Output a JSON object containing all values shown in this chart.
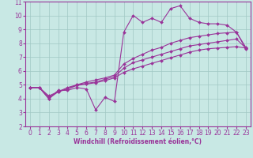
{
  "title": "",
  "xlabel": "Windchill (Refroidissement éolien,°C)",
  "ylabel": "",
  "bg_color": "#c8e8e4",
  "grid_color": "#a0c8c4",
  "line_color": "#993399",
  "axis_color": "#993399",
  "marker": "D",
  "markersize": 2.0,
  "linewidth": 0.8,
  "xlim": [
    -0.5,
    23.5
  ],
  "ylim": [
    2,
    11
  ],
  "xticks": [
    0,
    1,
    2,
    3,
    4,
    5,
    6,
    7,
    8,
    9,
    10,
    11,
    12,
    13,
    14,
    15,
    16,
    17,
    18,
    19,
    20,
    21,
    22,
    23
  ],
  "yticks": [
    2,
    3,
    4,
    5,
    6,
    7,
    8,
    9,
    10,
    11
  ],
  "xlabel_fontsize": 5.5,
  "tick_fontsize": 5.5,
  "series": [
    {
      "x": [
        0,
        1,
        2,
        3,
        4,
        5,
        6,
        7,
        8,
        9,
        10,
        11,
        12,
        13,
        14,
        15,
        16,
        17,
        18,
        19,
        20,
        21,
        22,
        23
      ],
      "y": [
        4.8,
        4.8,
        4.0,
        4.6,
        4.6,
        4.8,
        4.7,
        3.2,
        4.1,
        3.8,
        8.8,
        10.0,
        9.5,
        9.8,
        9.5,
        10.5,
        10.7,
        9.8,
        9.5,
        9.4,
        9.4,
        9.3,
        8.8,
        7.6
      ]
    },
    {
      "x": [
        0,
        1,
        2,
        3,
        4,
        5,
        6,
        7,
        8,
        9,
        10,
        11,
        12,
        13,
        14,
        15,
        16,
        17,
        18,
        19,
        20,
        21,
        22,
        23
      ],
      "y": [
        4.8,
        4.8,
        4.1,
        4.5,
        4.7,
        4.95,
        5.05,
        5.15,
        5.3,
        5.5,
        5.9,
        6.15,
        6.35,
        6.55,
        6.75,
        6.95,
        7.15,
        7.35,
        7.5,
        7.6,
        7.65,
        7.7,
        7.75,
        7.65
      ]
    },
    {
      "x": [
        0,
        1,
        2,
        3,
        4,
        5,
        6,
        7,
        8,
        9,
        10,
        11,
        12,
        13,
        14,
        15,
        16,
        17,
        18,
        19,
        20,
        21,
        22,
        23
      ],
      "y": [
        4.8,
        4.8,
        4.2,
        4.5,
        4.8,
        5.0,
        5.1,
        5.2,
        5.4,
        5.6,
        6.2,
        6.6,
        6.8,
        7.0,
        7.2,
        7.4,
        7.6,
        7.8,
        7.9,
        8.0,
        8.1,
        8.2,
        8.3,
        7.65
      ]
    },
    {
      "x": [
        0,
        1,
        2,
        3,
        4,
        5,
        6,
        7,
        8,
        9,
        10,
        11,
        12,
        13,
        14,
        15,
        16,
        17,
        18,
        19,
        20,
        21,
        22,
        23
      ],
      "y": [
        4.8,
        4.8,
        4.0,
        4.5,
        4.7,
        5.0,
        5.2,
        5.35,
        5.5,
        5.7,
        6.5,
        6.9,
        7.2,
        7.5,
        7.7,
        8.0,
        8.2,
        8.4,
        8.5,
        8.6,
        8.7,
        8.75,
        8.8,
        7.7
      ]
    }
  ]
}
